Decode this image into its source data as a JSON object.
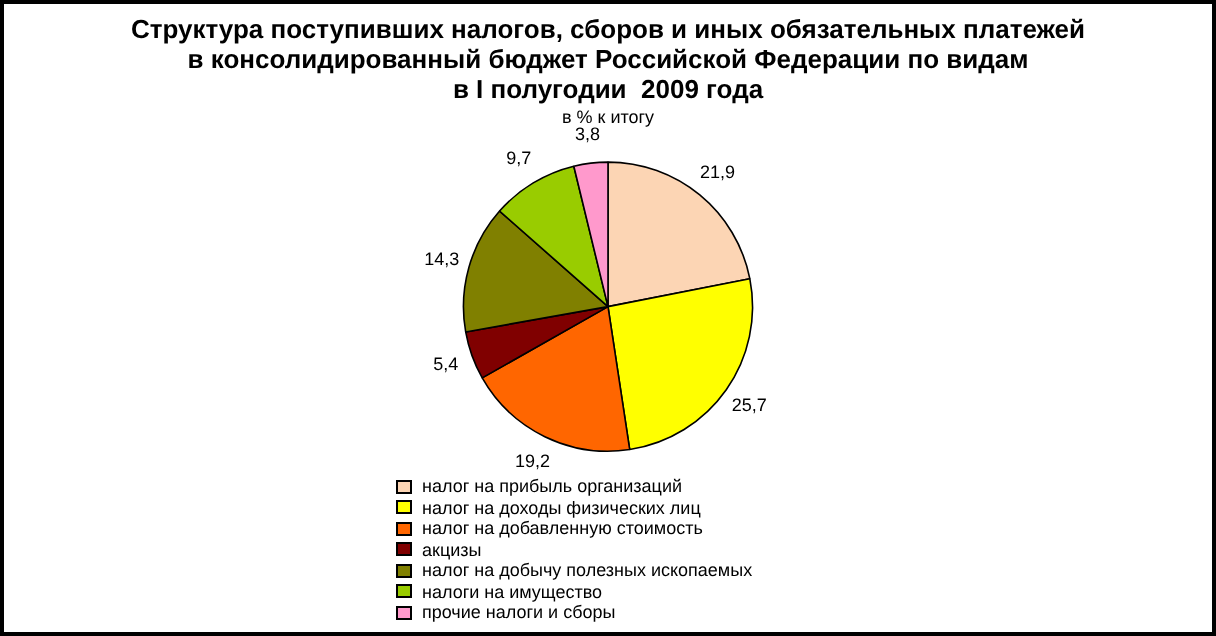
{
  "chart_data": {
    "type": "pie",
    "title": "Структура поступивших налогов, сборов и иных обязательных платежей\nв консолидированный бюджет Российской Федерации по видам\nв I полугодии  2009 года",
    "subtitle": "в % к итогу",
    "categories": [
      "налог на прибыль организаций",
      "налог на доходы физических лиц",
      "налог на добавленную стоимость",
      "акцизы",
      "налог на добычу полезных ископаемых",
      "налоги на имущество",
      "прочие налоги и сборы"
    ],
    "values": [
      21.9,
      25.7,
      19.2,
      5.4,
      14.3,
      9.7,
      3.8
    ],
    "value_labels": [
      "21,9",
      "25,7",
      "19,2",
      "5,4",
      "14,3",
      "9,7",
      "3,8"
    ],
    "colors": [
      "#fcd5b4",
      "#ffff00",
      "#ff6600",
      "#800000",
      "#808000",
      "#99cc00",
      "#ff99cc"
    ],
    "legend": "bottom"
  }
}
